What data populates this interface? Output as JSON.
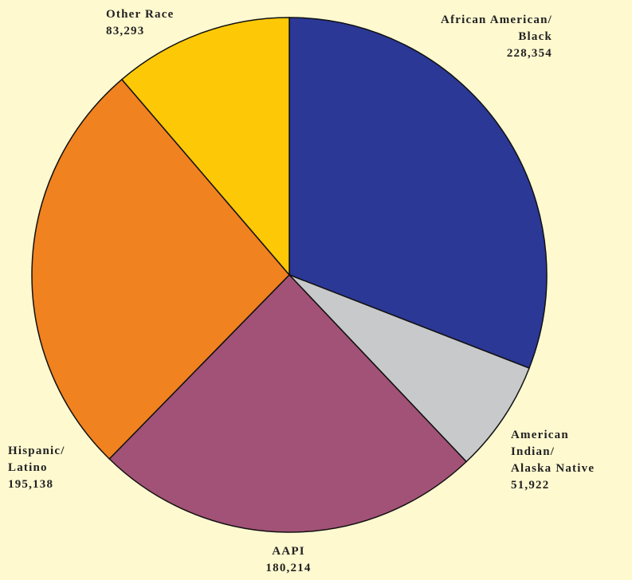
{
  "chart_data": {
    "type": "pie",
    "categories": [
      "African American/\nBlack",
      "American\nIndian/\nAlaska Native",
      "AAPI",
      "Hispanic/\nLatino",
      "Other Race"
    ],
    "values": [
      228354,
      51922,
      180214,
      195138,
      83293
    ],
    "value_labels": [
      "228,354",
      "51,922",
      "180,214",
      "195,138",
      "83,293"
    ],
    "colors": [
      "#2b3896",
      "#c8c9ca",
      "#a25276",
      "#f0821f",
      "#fdc806"
    ]
  }
}
